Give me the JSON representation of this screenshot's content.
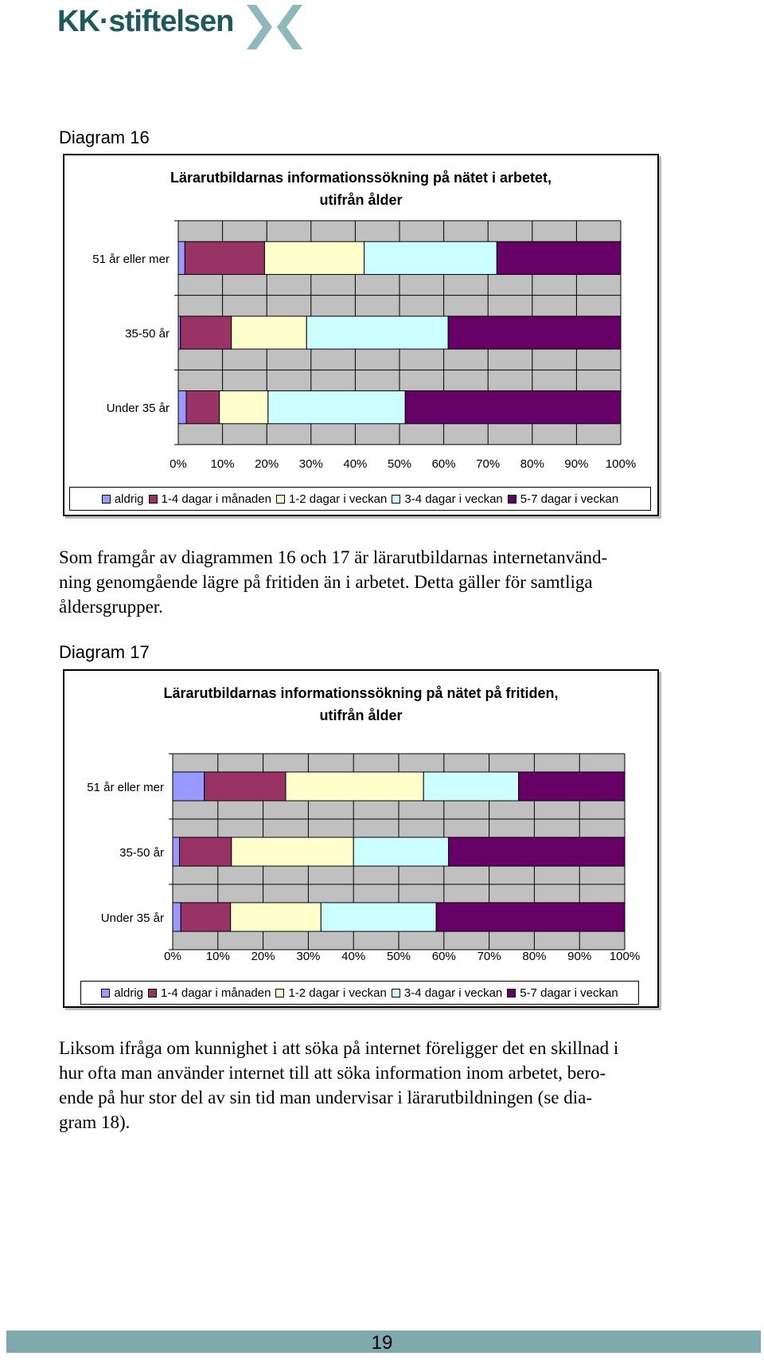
{
  "header": {
    "logo_text": "KK·stiftelsen"
  },
  "colors": {
    "aldrig": "#9999ff",
    "manaden": "#993366",
    "veckan12": "#ffffcc",
    "veckan34": "#ccffff",
    "veckan57": "#660066",
    "plot_bg": "#c0c0c0",
    "footer": "#7fa9ad",
    "logo": "#1d5a5d",
    "logo_mark": "#8fb8b9"
  },
  "legend_labels": [
    "aldrig",
    "1-4 dagar i månaden",
    "1-2 dagar i veckan",
    "3-4 dagar i veckan",
    "5-7 dagar i veckan"
  ],
  "diagram16": {
    "label": "Diagram 16",
    "title_line1": "Lärarutbildarnas informationssökning på nätet i arbetet,",
    "title_line2": "utifrån ålder"
  },
  "paragraph1": [
    "Som framgår av diagrammen 16 och 17 är lärarutbildarnas internetanvänd-",
    "ning genomgående lägre på fritiden än i arbetet. Detta gäller för samtliga",
    "åldersgrupper."
  ],
  "diagram17": {
    "label": "Diagram 17",
    "title_line1": "Lärarutbildarnas informationssökning på nätet på fritiden,",
    "title_line2": "utifrån ålder"
  },
  "paragraph2": [
    "Liksom ifråga om kunnighet i att söka på internet föreligger det en skillnad i",
    "hur ofta man använder internet till att söka information inom arbetet, bero-",
    "ende på hur stor del av sin tid man undervisar i lärarutbildningen (se dia-",
    "gram 18)."
  ],
  "footer": {
    "page_number": "19"
  },
  "chart_data": [
    {
      "type": "bar",
      "orientation": "horizontal",
      "stacked": "percent",
      "title": "Lärarutbildarnas informationssökning på nätet i arbetet, utifrån ålder",
      "categories": [
        "51 år eller mer",
        "35-50 år",
        "Under 35 år"
      ],
      "xlim": [
        0,
        100
      ],
      "x_ticks": [
        "0%",
        "10%",
        "20%",
        "30%",
        "40%",
        "50%",
        "60%",
        "70%",
        "80%",
        "90%",
        "100%"
      ],
      "grid": true,
      "legend_position": "bottom",
      "series": [
        {
          "name": "aldrig",
          "values": [
            1.5,
            0.5,
            1.8
          ]
        },
        {
          "name": "1-4 dagar i månaden",
          "values": [
            18,
            11.5,
            7.5
          ]
        },
        {
          "name": "1-2 dagar i veckan",
          "values": [
            22.5,
            17,
            11
          ]
        },
        {
          "name": "3-4 dagar i veckan",
          "values": [
            30,
            32,
            31
          ]
        },
        {
          "name": "5-7 dagar i veckan",
          "values": [
            28,
            39,
            48.7
          ]
        }
      ]
    },
    {
      "type": "bar",
      "orientation": "horizontal",
      "stacked": "percent",
      "title": "Lärarutbildarnas informationssökning på nätet på fritiden, utifrån ålder",
      "categories": [
        "51 år eller mer",
        "35-50 år",
        "Under 35 år"
      ],
      "xlim": [
        0,
        100
      ],
      "x_ticks": [
        "0%",
        "10%",
        "20%",
        "30%",
        "40%",
        "50%",
        "60%",
        "70%",
        "80%",
        "90%",
        "100%"
      ],
      "grid": true,
      "legend_position": "bottom",
      "series": [
        {
          "name": "aldrig",
          "values": [
            7,
            1.5,
            1.8
          ]
        },
        {
          "name": "1-4 dagar i månaden",
          "values": [
            18,
            11.5,
            11
          ]
        },
        {
          "name": "1-2 dagar i veckan",
          "values": [
            30.5,
            27,
            20
          ]
        },
        {
          "name": "3-4 dagar i veckan",
          "values": [
            21,
            21,
            25.5
          ]
        },
        {
          "name": "5-7 dagar i veckan",
          "values": [
            23.5,
            39,
            41.7
          ]
        }
      ]
    }
  ]
}
